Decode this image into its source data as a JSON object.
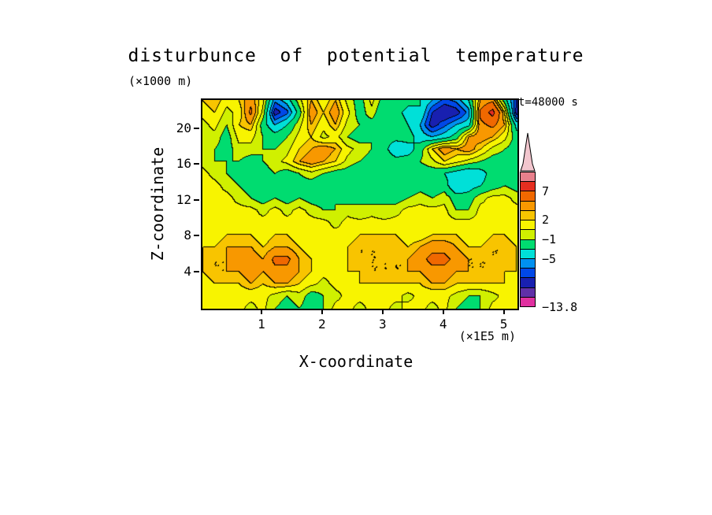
{
  "title": "disturbunce  of  potential  temperature",
  "annotations": {
    "time_label": "t=48000 s",
    "y_unit_label": "(×1000 m)",
    "x_unit_label": "(×1E5 m)"
  },
  "axes": {
    "x_label": "X-coordinate",
    "y_label": "Z-coordinate",
    "x_ticks": [
      1,
      2,
      3,
      4,
      5
    ],
    "y_ticks": [
      4,
      8,
      12,
      16,
      20
    ],
    "x_range": [
      0,
      5.2
    ],
    "y_range": [
      0,
      23.3
    ]
  },
  "colorbar": {
    "boundaries": [
      13.8,
      10,
      7,
      4.5,
      3,
      2,
      0.5,
      -1,
      -3,
      -5,
      -6.5,
      -8,
      -10.5,
      -12,
      -13.8
    ],
    "colors": [
      "#e8808c",
      "#e62e20",
      "#f06800",
      "#f89800",
      "#f8c400",
      "#f8f400",
      "#d0f000",
      "#00dc70",
      "#00e0d8",
      "#0090f0",
      "#0048e8",
      "#1820b0",
      "#6030a8",
      "#e030a0"
    ],
    "arrow_color": "#f2c6ce",
    "labels": [
      {
        "text": "7",
        "boundary_index": 2
      },
      {
        "text": "2",
        "boundary_index": 5
      },
      {
        "text": "−1",
        "boundary_index": 7
      },
      {
        "text": "−5",
        "boundary_index": 9
      },
      {
        "text": "−13.8",
        "boundary_index": 14
      }
    ]
  },
  "chart_data": {
    "type": "heatmap",
    "title": "disturbunce of potential temperature",
    "xlabel": "X-coordinate (×1E5 m)",
    "ylabel": "Z-coordinate (×1000 m)",
    "time": "t=48000 s",
    "x_range": [
      0,
      5.2
    ],
    "z_range": [
      0,
      23.3
    ],
    "levels": [
      13.8,
      10,
      7,
      4.5,
      3,
      2,
      0.5,
      -1,
      -3,
      -5,
      -6.5,
      -8,
      -10.5,
      -12,
      -13.8
    ],
    "rows_order": "top-to-bottom (high z first)",
    "x_coords": [
      0.1,
      0.3,
      0.5,
      0.7,
      0.9,
      1.1,
      1.3,
      1.5,
      1.7,
      1.9,
      2.1,
      2.3,
      2.5,
      2.7,
      2.9,
      3.1,
      3.3,
      3.5,
      3.7,
      3.9,
      4.1,
      4.3,
      4.5,
      4.7,
      4.9,
      5.1,
      5.3
    ],
    "z_coords": [
      21.5,
      20.2,
      19.0,
      17.8,
      16.5,
      15.3,
      14.1,
      12.8,
      11.6,
      10.4,
      9.1,
      7.9,
      6.7,
      5.4,
      4.2,
      3.0,
      1.7,
      0.5
    ],
    "values": [
      [
        2,
        3,
        1,
        2,
        4,
        1,
        -6,
        -4,
        0,
        3,
        1,
        3,
        0,
        -2,
        1,
        -2,
        -1,
        -2,
        -3,
        -5,
        -7,
        -6,
        -3,
        3,
        4,
        -2,
        -8
      ],
      [
        1,
        2,
        0,
        1,
        5,
        0,
        -9,
        -7,
        -2,
        4,
        2,
        4,
        1,
        -2,
        0,
        -3,
        -2,
        -4,
        -3,
        -8,
        -10,
        -9,
        -6,
        5,
        8,
        2,
        -9
      ],
      [
        0,
        1,
        -1,
        2,
        3,
        -2,
        -5,
        -3,
        0,
        3,
        1,
        3,
        0,
        -1,
        -2,
        -2,
        -1,
        -3,
        -5,
        -9,
        -7,
        -5,
        -4,
        4,
        5,
        3,
        -4
      ],
      [
        0,
        0,
        -2,
        1,
        1,
        -1,
        -2,
        -1,
        1,
        2,
        0,
        1,
        -1,
        -2,
        -1,
        -2,
        -2,
        -2,
        -4,
        -5,
        -4,
        -2,
        3,
        4,
        3,
        1,
        -2
      ],
      [
        -1,
        -1,
        -2,
        0,
        0,
        -1,
        -1,
        0,
        2,
        3,
        4,
        3,
        1,
        0,
        -1,
        -2,
        -5,
        -4,
        -2,
        2,
        4,
        3,
        4,
        2,
        0,
        -1,
        -2
      ],
      [
        0,
        -1,
        -1,
        -1,
        -2,
        -1,
        0,
        1,
        3,
        4,
        3,
        2,
        0,
        -1,
        -2,
        -1,
        -2,
        -2,
        -1,
        0,
        2,
        1,
        0,
        -1,
        -2,
        -2,
        -1
      ],
      [
        1,
        0,
        -1,
        -2,
        -2,
        -2,
        -1,
        -2,
        -1,
        0,
        -1,
        -2,
        -2,
        -3,
        -2,
        -2,
        -3,
        -2,
        -2,
        -2,
        -3,
        -4,
        -5,
        -4,
        -2,
        -2,
        -2
      ],
      [
        1,
        1,
        0,
        -1,
        -2,
        -3,
        -2,
        -3,
        -2,
        -2,
        -3,
        -2,
        -3,
        -2,
        -2,
        -3,
        -2,
        -3,
        -2,
        -3,
        -2,
        -5,
        -4,
        -3,
        -2,
        -1,
        -2
      ],
      [
        1,
        1,
        1,
        0,
        -1,
        -2,
        -1,
        -2,
        -1,
        -2,
        -2,
        -1,
        -2,
        -1,
        -2,
        -1,
        -2,
        -1,
        0,
        -1,
        0,
        -2,
        -2,
        0,
        1,
        1,
        0
      ],
      [
        1,
        1,
        1,
        1,
        1,
        0,
        1,
        0,
        1,
        0,
        -1,
        -1,
        0,
        -1,
        0,
        -1,
        0,
        1,
        1,
        1,
        1,
        -1,
        -1,
        1,
        1,
        1,
        1
      ],
      [
        1,
        1,
        1,
        1,
        1,
        1,
        1,
        1,
        1,
        1,
        1,
        0,
        1,
        1,
        1,
        1,
        1,
        1,
        1,
        1,
        1,
        1,
        1,
        1,
        1,
        1,
        1
      ],
      [
        1,
        1,
        2,
        2,
        2,
        1,
        2,
        2,
        1,
        1,
        1,
        1,
        1,
        2,
        2,
        2,
        2,
        1,
        1,
        2,
        2,
        2,
        1,
        1,
        2,
        2,
        1
      ],
      [
        2,
        2,
        3,
        3,
        3,
        2,
        3,
        3,
        2,
        1,
        2,
        1,
        2,
        3,
        3,
        3,
        3,
        2,
        3,
        4,
        4,
        3,
        2,
        2,
        3,
        3,
        2
      ],
      [
        2,
        3,
        3,
        4,
        4,
        3,
        5,
        5,
        3,
        2,
        1,
        1,
        2,
        3,
        3,
        3,
        3,
        3,
        4,
        5,
        5,
        4,
        3,
        3,
        3,
        3,
        2
      ],
      [
        2,
        3,
        3,
        3,
        4,
        3,
        4,
        4,
        3,
        2,
        1,
        1,
        2,
        2,
        3,
        3,
        3,
        3,
        3,
        4,
        4,
        3,
        3,
        3,
        3,
        2,
        2
      ],
      [
        1,
        2,
        2,
        2,
        3,
        2,
        3,
        3,
        2,
        1,
        0,
        1,
        1,
        2,
        2,
        2,
        2,
        2,
        2,
        3,
        3,
        2,
        2,
        2,
        2,
        2,
        1
      ],
      [
        1,
        1,
        1,
        1,
        1,
        1,
        0,
        -1,
        0,
        -2,
        -1,
        0,
        1,
        1,
        1,
        1,
        1,
        0,
        1,
        1,
        1,
        0,
        -1,
        -1,
        0,
        1,
        1
      ],
      [
        1,
        1,
        1,
        1,
        0,
        1,
        -1,
        -2,
        -1,
        -2,
        -1,
        1,
        1,
        0,
        1,
        1,
        0,
        1,
        1,
        0,
        1,
        -1,
        -2,
        -1,
        1,
        1,
        1
      ]
    ]
  }
}
